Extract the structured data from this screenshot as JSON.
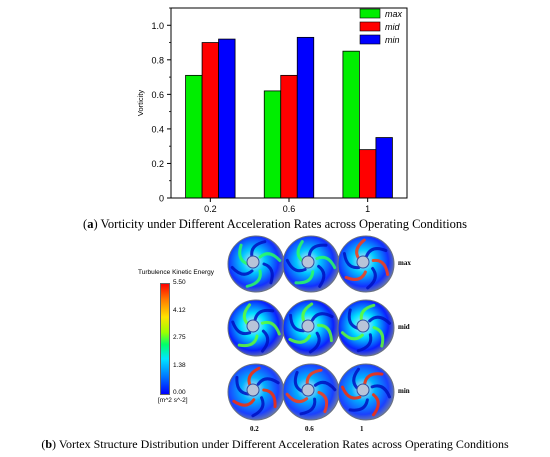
{
  "chart_data": [
    {
      "type": "bar",
      "categories": [
        "0.2",
        "0.6",
        "1"
      ],
      "series": [
        {
          "name": "max",
          "values": [
            0.71,
            0.62,
            0.85
          ],
          "color": "#00ee00"
        },
        {
          "name": "mid",
          "values": [
            0.9,
            0.71,
            0.28
          ],
          "color": "#ff0000"
        },
        {
          "name": "min",
          "values": [
            0.92,
            0.93,
            0.35
          ],
          "color": "#0000ff"
        }
      ],
      "ylabel": "Vorticity",
      "ylim": [
        0,
        1.1
      ],
      "yticks": [
        "0",
        "0.2",
        "0.4",
        "0.6",
        "0.8",
        "1.0"
      ],
      "legend": "top-right",
      "grid": false
    },
    {
      "type": "heatmap",
      "colorbar_title": "Turbulence Kinetic Energy",
      "colorbar_ticks": [
        "5.50",
        "4.12",
        "2.75",
        "1.38",
        "0.00"
      ],
      "colorbar_unit": "[m^2 s^-2]",
      "rows": [
        "max",
        "mid",
        "min"
      ],
      "columns": [
        "0.2",
        "0.6",
        "1"
      ]
    }
  ],
  "captions": {
    "a_label": "a",
    "a_text": "Vorticity under Different Acceleration Rates across Operating Conditions",
    "b_label": "b",
    "b_text": "Vortex Structure Distribution under Different Acceleration Rates across Operating Conditions"
  }
}
